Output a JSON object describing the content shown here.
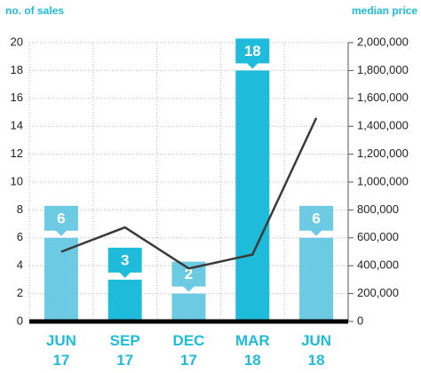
{
  "chart_data": {
    "type": "bar",
    "y_label": "no. of sales",
    "y2_label": "median price",
    "categories": [
      [
        "JUN",
        "17"
      ],
      [
        "SEP",
        "17"
      ],
      [
        "DEC",
        "17"
      ],
      [
        "MAR",
        "18"
      ],
      [
        "JUN",
        "18"
      ]
    ],
    "series": [
      {
        "type": "bar",
        "colors": [
          "#6ccae2",
          "#1ebcda",
          "#6ccae2",
          "#1ebcda",
          "#6ccae2"
        ],
        "values": [
          6,
          3,
          2,
          18,
          6
        ]
      },
      {
        "type": "line",
        "axis": "y2",
        "color": "#3a3a3a",
        "values": [
          500000,
          675000,
          380000,
          480000,
          1460000
        ]
      }
    ],
    "ylim": [
      0,
      20
    ],
    "yticks": [
      0,
      2,
      4,
      6,
      8,
      10,
      12,
      14,
      16,
      18,
      20
    ],
    "y2lim": [
      0,
      2000000
    ],
    "y2ticks": [
      0,
      {
        "value": 200000,
        "label": "200,000"
      },
      {
        "value": 400000,
        "label": "400,000"
      },
      {
        "value": 600000,
        "label": "600,000"
      },
      {
        "value": 800000,
        "label": "800,000"
      },
      {
        "value": 1000000,
        "label": "1,000,000"
      },
      {
        "value": 1200000,
        "label": "1,200,000"
      },
      {
        "value": 1400000,
        "label": "1,400,000"
      },
      {
        "value": 1600000,
        "label": "1,600,000"
      },
      {
        "value": 1800000,
        "label": "1,800,000"
      },
      {
        "value": 2000000,
        "label": "2,000,000"
      }
    ],
    "grid": true
  }
}
